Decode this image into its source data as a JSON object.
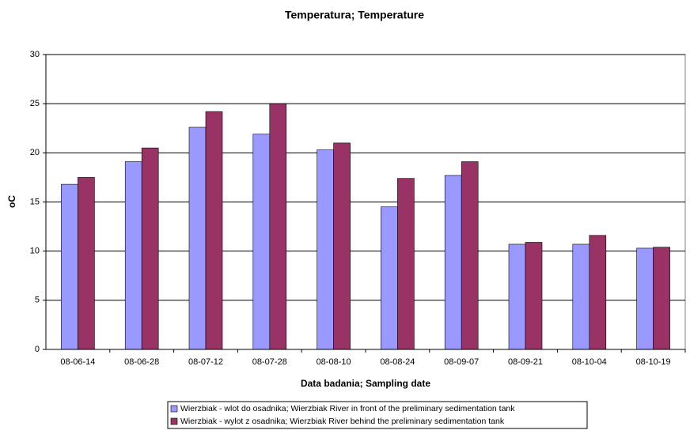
{
  "chart_data": {
    "type": "bar",
    "title": "Temperatura; Temperature",
    "x_label": "Data badania; Sampling date",
    "y_label": "oC",
    "categories": [
      "08-06-14",
      "08-06-28",
      "08-07-12",
      "08-07-28",
      "08-08-10",
      "08-08-24",
      "08-09-07",
      "08-09-21",
      "08-10-04",
      "08-10-19"
    ],
    "series": [
      {
        "name": "Wierzbiak - wlot do osadnika; Wierzbiak River in front of the preliminary sedimentation tank",
        "color": "#9999ff",
        "values": [
          16.8,
          19.1,
          22.6,
          21.9,
          20.3,
          14.5,
          17.7,
          10.7,
          10.7,
          10.3
        ]
      },
      {
        "name": "Wierzbiak - wylot z osadnika;  Wierzbiak River behind the preliminary sedimentation tank",
        "color": "#993366",
        "values": [
          17.5,
          20.5,
          24.2,
          25.0,
          21.0,
          17.4,
          19.1,
          10.9,
          11.6,
          10.4
        ]
      }
    ],
    "ylim": [
      0,
      30
    ],
    "yticks": [
      0,
      5,
      10,
      15,
      20,
      25,
      30
    ],
    "grid": true,
    "legend": "bottom"
  }
}
